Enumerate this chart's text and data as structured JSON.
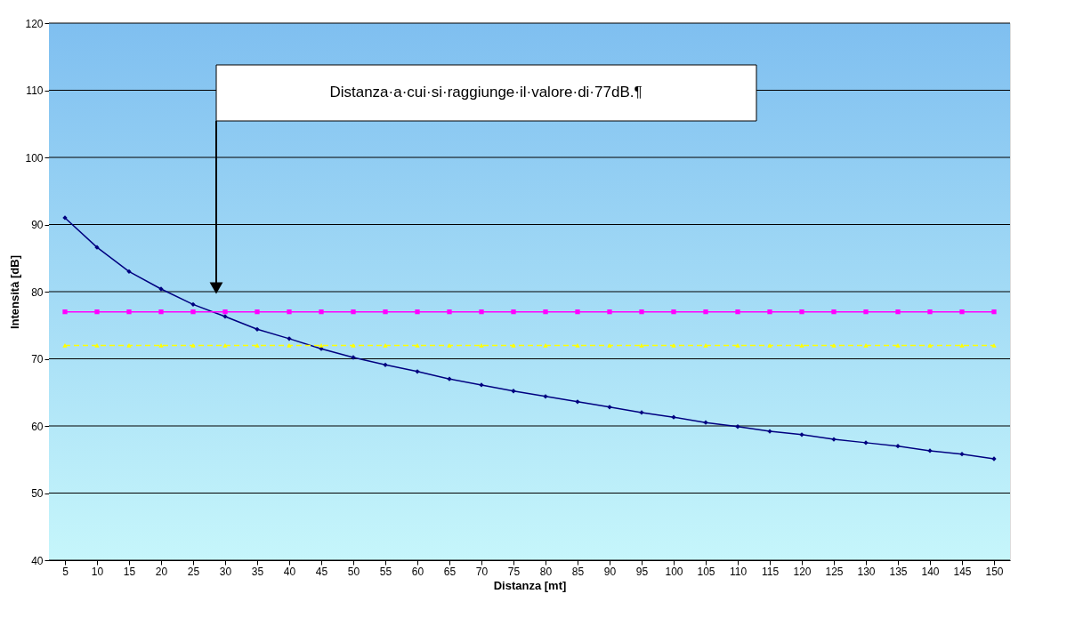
{
  "chart_data": {
    "type": "line",
    "xlabel": "Distanza [mt]",
    "ylabel": "Intensità [dB]",
    "categories": [
      "5",
      "10",
      "15",
      "20",
      "25",
      "30",
      "35",
      "40",
      "45",
      "50",
      "55",
      "60",
      "65",
      "70",
      "75",
      "80",
      "85",
      "90",
      "95",
      "100",
      "105",
      "110",
      "115",
      "120",
      "125",
      "130",
      "135",
      "140",
      "145",
      "150"
    ],
    "series": [
      {
        "color": "#000080",
        "marker": "diamond",
        "values": [
          91.0,
          86.6,
          83.0,
          80.4,
          78.1,
          76.3,
          74.4,
          73.0,
          71.5,
          70.2,
          69.1,
          68.1,
          67.0,
          66.1,
          65.2,
          64.4,
          63.6,
          62.8,
          62.0,
          61.3,
          60.5,
          59.9,
          59.2,
          58.7,
          58.0,
          57.5,
          57.0,
          56.3,
          55.8,
          55.1
        ]
      },
      {
        "color": "#ff00ff",
        "marker": "square",
        "values": [
          77,
          77,
          77,
          77,
          77,
          77,
          77,
          77,
          77,
          77,
          77,
          77,
          77,
          77,
          77,
          77,
          77,
          77,
          77,
          77,
          77,
          77,
          77,
          77,
          77,
          77,
          77,
          77,
          77,
          77
        ]
      },
      {
        "color": "#ffff00",
        "marker": "triangle",
        "line_style": "dashed",
        "values": [
          72,
          72,
          72,
          72,
          72,
          72,
          72,
          72,
          72,
          72,
          72,
          72,
          72,
          72,
          72,
          72,
          72,
          72,
          72,
          72,
          72,
          72,
          72,
          72,
          72,
          72,
          72,
          72,
          72,
          72
        ]
      }
    ],
    "ylim": [
      40,
      120
    ],
    "yticks": [
      40,
      50,
      60,
      70,
      80,
      90,
      100,
      110,
      120
    ],
    "grid": "y",
    "annotations": [
      "Distanza·a·cui·si·raggiunge·il·valore·di·77dB.¶"
    ]
  }
}
